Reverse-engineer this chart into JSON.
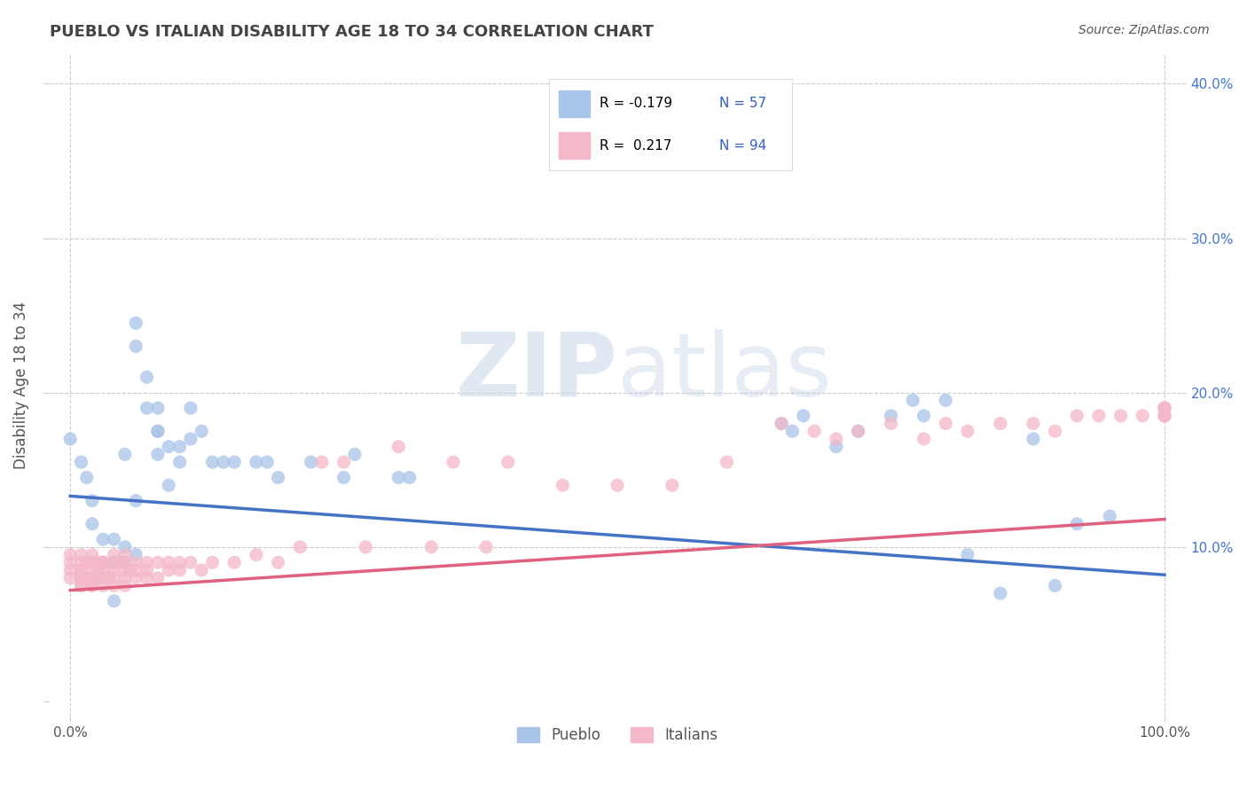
{
  "title": "PUEBLO VS ITALIAN DISABILITY AGE 18 TO 34 CORRELATION CHART",
  "source": "Source: ZipAtlas.com",
  "ylabel": "Disability Age 18 to 34",
  "xlim": [
    -0.02,
    1.02
  ],
  "ylim": [
    -0.01,
    0.42
  ],
  "pueblo_color": "#a8c4e8",
  "pueblo_line_color": "#4472c4",
  "italian_color": "#f4b8c8",
  "italian_line_color": "#e06080",
  "pueblo_R": -0.179,
  "pueblo_N": 57,
  "italian_R": 0.217,
  "italian_N": 94,
  "watermark_zip": "ZIP",
  "watermark_atlas": "atlas",
  "pueblo_scatter_x": [
    0.0,
    0.01,
    0.015,
    0.02,
    0.02,
    0.025,
    0.03,
    0.03,
    0.04,
    0.04,
    0.04,
    0.05,
    0.05,
    0.05,
    0.06,
    0.06,
    0.06,
    0.06,
    0.07,
    0.07,
    0.08,
    0.08,
    0.08,
    0.08,
    0.09,
    0.09,
    0.1,
    0.1,
    0.11,
    0.11,
    0.12,
    0.13,
    0.14,
    0.15,
    0.17,
    0.18,
    0.19,
    0.22,
    0.25,
    0.26,
    0.3,
    0.31,
    0.65,
    0.66,
    0.67,
    0.7,
    0.72,
    0.75,
    0.77,
    0.78,
    0.8,
    0.82,
    0.85,
    0.88,
    0.9,
    0.92,
    0.95
  ],
  "pueblo_scatter_y": [
    0.17,
    0.155,
    0.145,
    0.13,
    0.115,
    0.08,
    0.105,
    0.09,
    0.105,
    0.09,
    0.065,
    0.16,
    0.1,
    0.09,
    0.245,
    0.23,
    0.13,
    0.095,
    0.21,
    0.19,
    0.19,
    0.175,
    0.175,
    0.16,
    0.165,
    0.14,
    0.165,
    0.155,
    0.19,
    0.17,
    0.175,
    0.155,
    0.155,
    0.155,
    0.155,
    0.155,
    0.145,
    0.155,
    0.145,
    0.16,
    0.145,
    0.145,
    0.18,
    0.175,
    0.185,
    0.165,
    0.175,
    0.185,
    0.195,
    0.185,
    0.195,
    0.095,
    0.07,
    0.17,
    0.075,
    0.115,
    0.12
  ],
  "italian_scatter_x": [
    0.0,
    0.0,
    0.0,
    0.0,
    0.01,
    0.01,
    0.01,
    0.01,
    0.01,
    0.01,
    0.01,
    0.01,
    0.015,
    0.015,
    0.02,
    0.02,
    0.02,
    0.02,
    0.02,
    0.02,
    0.02,
    0.025,
    0.025,
    0.025,
    0.03,
    0.03,
    0.03,
    0.03,
    0.03,
    0.035,
    0.04,
    0.04,
    0.04,
    0.04,
    0.04,
    0.045,
    0.05,
    0.05,
    0.05,
    0.05,
    0.05,
    0.055,
    0.06,
    0.06,
    0.06,
    0.07,
    0.07,
    0.07,
    0.08,
    0.08,
    0.09,
    0.09,
    0.1,
    0.1,
    0.11,
    0.12,
    0.13,
    0.15,
    0.17,
    0.19,
    0.21,
    0.23,
    0.25,
    0.27,
    0.3,
    0.33,
    0.35,
    0.38,
    0.4,
    0.45,
    0.5,
    0.55,
    0.6,
    0.65,
    0.68,
    0.7,
    0.72,
    0.75,
    0.78,
    0.8,
    0.82,
    0.85,
    0.88,
    0.9,
    0.92,
    0.94,
    0.96,
    0.98,
    1.0,
    1.0,
    1.0,
    1.0,
    1.0,
    1.0
  ],
  "italian_scatter_y": [
    0.085,
    0.09,
    0.095,
    0.08,
    0.08,
    0.085,
    0.09,
    0.095,
    0.075,
    0.08,
    0.085,
    0.075,
    0.09,
    0.08,
    0.085,
    0.08,
    0.075,
    0.09,
    0.095,
    0.08,
    0.075,
    0.09,
    0.08,
    0.085,
    0.09,
    0.08,
    0.085,
    0.075,
    0.09,
    0.08,
    0.085,
    0.09,
    0.095,
    0.075,
    0.08,
    0.09,
    0.08,
    0.085,
    0.09,
    0.095,
    0.075,
    0.085,
    0.09,
    0.08,
    0.085,
    0.09,
    0.08,
    0.085,
    0.09,
    0.08,
    0.09,
    0.085,
    0.09,
    0.085,
    0.09,
    0.085,
    0.09,
    0.09,
    0.095,
    0.09,
    0.1,
    0.155,
    0.155,
    0.1,
    0.165,
    0.1,
    0.155,
    0.1,
    0.155,
    0.14,
    0.14,
    0.14,
    0.155,
    0.18,
    0.175,
    0.17,
    0.175,
    0.18,
    0.17,
    0.18,
    0.175,
    0.18,
    0.18,
    0.175,
    0.185,
    0.185,
    0.185,
    0.185,
    0.185,
    0.19,
    0.185,
    0.19,
    0.185,
    0.19
  ],
  "pueblo_trend_x": [
    0.0,
    1.0
  ],
  "pueblo_trend_y_start": 0.133,
  "pueblo_trend_y_end": 0.082,
  "italian_trend_x": [
    0.0,
    1.0
  ],
  "italian_trend_y_start": 0.072,
  "italian_trend_y_end": 0.118,
  "yticks": [
    0.0,
    0.1,
    0.2,
    0.3,
    0.4
  ],
  "ytick_labels_left": [
    "",
    "",
    "",
    "",
    ""
  ],
  "ytick_labels_right": [
    "",
    "10.0%",
    "20.0%",
    "30.0%",
    "40.0%"
  ],
  "xticks": [
    0.0,
    1.0
  ],
  "xtick_labels": [
    "0.0%",
    "100.0%"
  ],
  "grid_color": "#cccccc",
  "background_color": "#ffffff",
  "title_color": "#444444",
  "axis_label_color": "#555555",
  "right_tick_color": "#4477cc",
  "legend_label_color": "#3060c0",
  "legend_R_color": "#cc0000",
  "bottom_legend_items": [
    "Pueblo",
    "Italians"
  ]
}
